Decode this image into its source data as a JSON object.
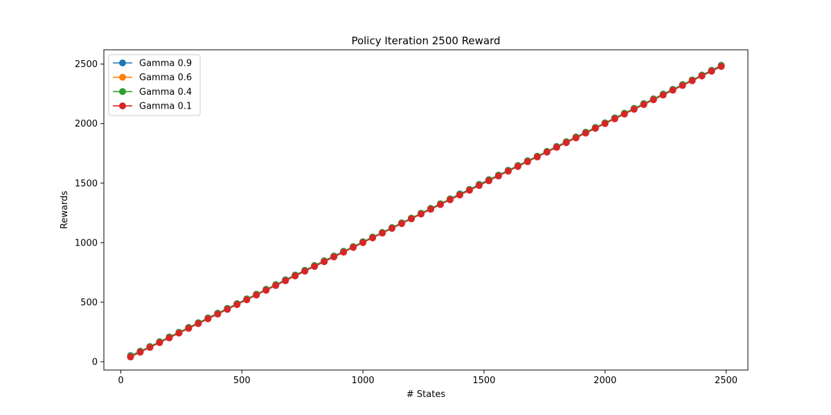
{
  "chart_data": {
    "type": "line",
    "title": "Policy Iteration 2500  Reward",
    "xlabel": "# States",
    "ylabel": "Rewards",
    "xlim": [
      -70,
      2590
    ],
    "ylim": [
      -70,
      2620
    ],
    "xticks": [
      0,
      500,
      1000,
      1500,
      2000,
      2500
    ],
    "yticks": [
      0,
      500,
      1000,
      1500,
      2000,
      2500
    ],
    "grid": false,
    "legend_position": "top-left",
    "x": [
      40,
      80,
      120,
      160,
      200,
      240,
      280,
      320,
      360,
      400,
      440,
      480,
      520,
      560,
      600,
      640,
      680,
      720,
      760,
      800,
      840,
      880,
      920,
      960,
      1000,
      1040,
      1080,
      1120,
      1160,
      1200,
      1240,
      1280,
      1320,
      1360,
      1400,
      1440,
      1480,
      1520,
      1560,
      1600,
      1640,
      1680,
      1720,
      1760,
      1800,
      1840,
      1880,
      1920,
      1960,
      2000,
      2040,
      2080,
      2120,
      2160,
      2200,
      2240,
      2280,
      2320,
      2360,
      2400,
      2440,
      2480
    ],
    "series": [
      {
        "name": "Gamma 0.9",
        "color": "#1f77b4",
        "values": [
          52,
          88,
          127,
          168,
          208,
          247,
          288,
          327,
          368,
          408,
          448,
          488,
          528,
          566,
          608,
          648,
          688,
          728,
          768,
          808,
          848,
          888,
          928,
          966,
          1008,
          1047,
          1085,
          1126,
          1166,
          1206,
          1247,
          1288,
          1326,
          1368,
          1410,
          1447,
          1490,
          1529,
          1568,
          1608,
          1648,
          1688,
          1726,
          1766,
          1808,
          1848,
          1888,
          1928,
          1968,
          2006,
          2048,
          2088,
          2128,
          2168,
          2208,
          2248,
          2288,
          2328,
          2366,
          2408,
          2448,
          2490
        ]
      },
      {
        "name": "Gamma 0.6",
        "color": "#ff7f0e",
        "values": [
          48,
          86,
          125,
          166,
          206,
          245,
          286,
          325,
          366,
          406,
          446,
          486,
          526,
          565,
          606,
          646,
          686,
          726,
          766,
          806,
          846,
          886,
          926,
          965,
          1006,
          1045,
          1084,
          1124,
          1165,
          1204,
          1245,
          1286,
          1325,
          1366,
          1406,
          1445,
          1486,
          1526,
          1566,
          1606,
          1646,
          1686,
          1725,
          1765,
          1806,
          1846,
          1886,
          1926,
          1966,
          2005,
          2046,
          2086,
          2126,
          2166,
          2206,
          2246,
          2286,
          2326,
          2365,
          2406,
          2446,
          2486
        ]
      },
      {
        "name": "Gamma 0.4",
        "color": "#2ca02c",
        "values": [
          46,
          86,
          126,
          166,
          206,
          246,
          286,
          326,
          366,
          406,
          446,
          486,
          526,
          566,
          606,
          646,
          686,
          726,
          766,
          806,
          846,
          886,
          926,
          966,
          1006,
          1046,
          1086,
          1126,
          1166,
          1206,
          1246,
          1286,
          1326,
          1366,
          1406,
          1446,
          1486,
          1526,
          1566,
          1606,
          1646,
          1686,
          1726,
          1766,
          1806,
          1846,
          1886,
          1926,
          1966,
          2006,
          2046,
          2086,
          2126,
          2166,
          2206,
          2246,
          2286,
          2326,
          2366,
          2406,
          2446,
          2486
        ]
      },
      {
        "name": "Gamma 0.1",
        "color": "#d62728",
        "values": [
          40,
          80,
          120,
          160,
          200,
          240,
          280,
          320,
          360,
          400,
          440,
          480,
          520,
          560,
          600,
          640,
          680,
          720,
          760,
          800,
          840,
          880,
          920,
          960,
          1000,
          1040,
          1080,
          1120,
          1160,
          1200,
          1240,
          1280,
          1320,
          1360,
          1400,
          1440,
          1480,
          1520,
          1560,
          1600,
          1640,
          1680,
          1720,
          1760,
          1800,
          1840,
          1880,
          1920,
          1960,
          2000,
          2040,
          2080,
          2120,
          2160,
          2200,
          2240,
          2280,
          2320,
          2360,
          2400,
          2440,
          2480
        ]
      }
    ]
  }
}
